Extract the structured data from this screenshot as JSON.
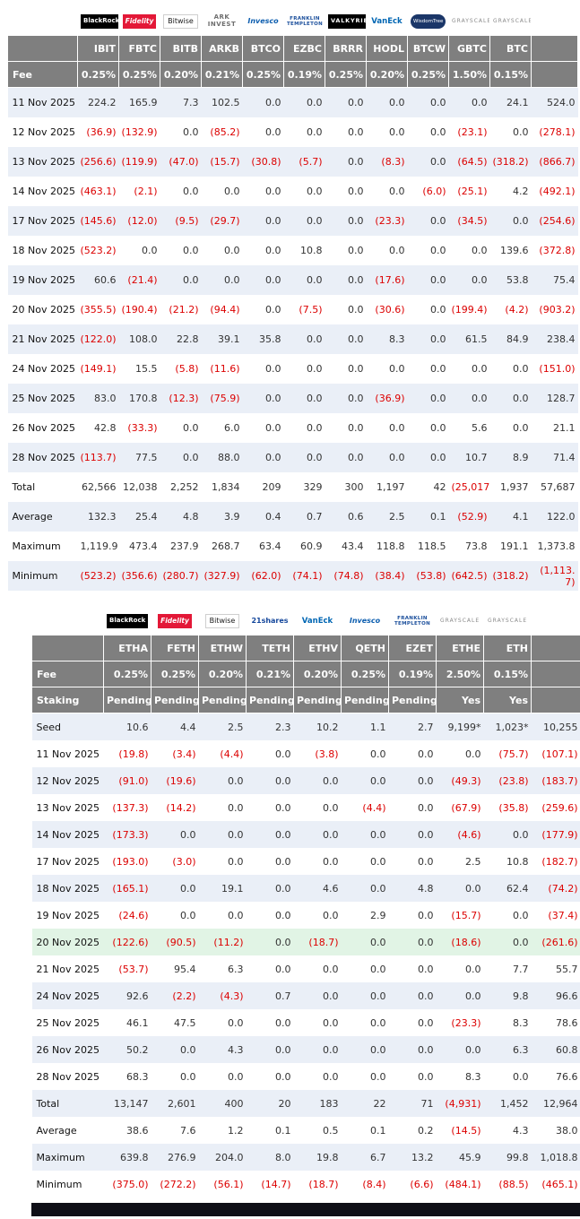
{
  "colors": {
    "header_bg": "#7F7F7F",
    "header_text": "#FFFFFF",
    "row_alt": "#EAEFF7",
    "row_white": "#FFFFFF",
    "row_green": "#E1F4E5",
    "negative": "#DC0000",
    "positive": "#333333",
    "label_text": "#111111",
    "footer_bar": "#0F0F17"
  },
  "chart_data": [
    {
      "id": "btc",
      "type": "table",
      "total_label": "Total",
      "fee_label": "Fee",
      "providers": [
        {
          "brand": "blackrock",
          "text": "BlackRock"
        },
        {
          "brand": "fidelity",
          "text": "Fidelity"
        },
        {
          "brand": "bitwise",
          "text": "Bitwise"
        },
        {
          "brand": "ark",
          "text": "ARK INVEST"
        },
        {
          "brand": "invesco",
          "text": "Invesco"
        },
        {
          "brand": "franklin",
          "text": "FRANKLIN TEMPLETON"
        },
        {
          "brand": "valkyrie",
          "text": "VALKYRIE"
        },
        {
          "brand": "vaneck",
          "text": "VanEck"
        },
        {
          "brand": "wisdomtree",
          "text": "WisdomTree"
        },
        {
          "brand": "grayscale",
          "text": "GRAYSCALE"
        },
        {
          "brand": "grayscale",
          "text": "GRAYSCALE"
        }
      ],
      "tickers": [
        "IBIT",
        "FBTC",
        "BITB",
        "ARKB",
        "BTCO",
        "EZBC",
        "BRRR",
        "HODL",
        "BTCW",
        "GBTC",
        "BTC"
      ],
      "fees": [
        "0.25%",
        "0.25%",
        "0.20%",
        "0.21%",
        "0.25%",
        "0.19%",
        "0.25%",
        "0.20%",
        "0.25%",
        "1.50%",
        "0.15%"
      ],
      "rows": [
        {
          "label": "11 Nov 2025",
          "values": [
            "224.2",
            "165.9",
            "7.3",
            "102.5",
            "0.0",
            "0.0",
            "0.0",
            "0.0",
            "0.0",
            "0.0",
            "24.1"
          ],
          "total": "524.0"
        },
        {
          "label": "12 Nov 2025",
          "values": [
            "(36.9)",
            "(132.9)",
            "0.0",
            "(85.2)",
            "0.0",
            "0.0",
            "0.0",
            "0.0",
            "0.0",
            "(23.1)",
            "0.0"
          ],
          "total": "(278.1)"
        },
        {
          "label": "13 Nov 2025",
          "values": [
            "(256.6)",
            "(119.9)",
            "(47.0)",
            "(15.7)",
            "(30.8)",
            "(5.7)",
            "0.0",
            "(8.3)",
            "0.0",
            "(64.5)",
            "(318.2)"
          ],
          "total": "(866.7)"
        },
        {
          "label": "14 Nov 2025",
          "values": [
            "(463.1)",
            "(2.1)",
            "0.0",
            "0.0",
            "0.0",
            "0.0",
            "0.0",
            "0.0",
            "(6.0)",
            "(25.1)",
            "4.2"
          ],
          "total": "(492.1)"
        },
        {
          "label": "17 Nov 2025",
          "values": [
            "(145.6)",
            "(12.0)",
            "(9.5)",
            "(29.7)",
            "0.0",
            "0.0",
            "0.0",
            "(23.3)",
            "0.0",
            "(34.5)",
            "0.0"
          ],
          "total": "(254.6)"
        },
        {
          "label": "18 Nov 2025",
          "values": [
            "(523.2)",
            "0.0",
            "0.0",
            "0.0",
            "0.0",
            "10.8",
            "0.0",
            "0.0",
            "0.0",
            "0.0",
            "139.6"
          ],
          "total": "(372.8)"
        },
        {
          "label": "19 Nov 2025",
          "values": [
            "60.6",
            "(21.4)",
            "0.0",
            "0.0",
            "0.0",
            "0.0",
            "0.0",
            "(17.6)",
            "0.0",
            "0.0",
            "53.8"
          ],
          "total": "75.4"
        },
        {
          "label": "20 Nov 2025",
          "values": [
            "(355.5)",
            "(190.4)",
            "(21.2)",
            "(94.4)",
            "0.0",
            "(7.5)",
            "0.0",
            "(30.6)",
            "0.0",
            "(199.4)",
            "(4.2)"
          ],
          "total": "(903.2)"
        },
        {
          "label": "21 Nov 2025",
          "values": [
            "(122.0)",
            "108.0",
            "22.8",
            "39.1",
            "35.8",
            "0.0",
            "0.0",
            "8.3",
            "0.0",
            "61.5",
            "84.9"
          ],
          "total": "238.4"
        },
        {
          "label": "24 Nov 2025",
          "values": [
            "(149.1)",
            "15.5",
            "(5.8)",
            "(11.6)",
            "0.0",
            "0.0",
            "0.0",
            "0.0",
            "0.0",
            "0.0",
            "0.0"
          ],
          "total": "(151.0)"
        },
        {
          "label": "25 Nov 2025",
          "values": [
            "83.0",
            "170.8",
            "(12.3)",
            "(75.9)",
            "0.0",
            "0.0",
            "0.0",
            "(36.9)",
            "0.0",
            "0.0",
            "0.0"
          ],
          "total": "128.7"
        },
        {
          "label": "26 Nov 2025",
          "values": [
            "42.8",
            "(33.3)",
            "0.0",
            "6.0",
            "0.0",
            "0.0",
            "0.0",
            "0.0",
            "0.0",
            "5.6",
            "0.0"
          ],
          "total": "21.1"
        },
        {
          "label": "28 Nov 2025",
          "values": [
            "(113.7)",
            "77.5",
            "0.0",
            "88.0",
            "0.0",
            "0.0",
            "0.0",
            "0.0",
            "0.0",
            "10.7",
            "8.9"
          ],
          "total": "71.4"
        }
      ],
      "summary": [
        {
          "label": "Total",
          "values": [
            "62,566",
            "12,038",
            "2,252",
            "1,834",
            "209",
            "329",
            "300",
            "1,197",
            "42",
            "(25,017)",
            "1,937"
          ],
          "total": "57,687"
        },
        {
          "label": "Average",
          "values": [
            "132.3",
            "25.4",
            "4.8",
            "3.9",
            "0.4",
            "0.7",
            "0.6",
            "2.5",
            "0.1",
            "(52.9)",
            "4.1"
          ],
          "total": "122.0"
        },
        {
          "label": "Maximum",
          "values": [
            "1,119.9",
            "473.4",
            "237.9",
            "268.7",
            "63.4",
            "60.9",
            "43.4",
            "118.8",
            "118.5",
            "73.8",
            "191.1"
          ],
          "total": "1,373.8"
        },
        {
          "label": "Minimum",
          "values": [
            "(523.2)",
            "(356.6)",
            "(280.7)",
            "(327.9)",
            "(62.0)",
            "(74.1)",
            "(74.8)",
            "(38.4)",
            "(53.8)",
            "(642.5)",
            "(318.2)"
          ],
          "total": "(1,113.7)"
        }
      ]
    },
    {
      "id": "eth",
      "type": "table",
      "total_label": "Total",
      "fee_label": "Fee",
      "staking_label": "Staking",
      "providers": [
        {
          "brand": "blackrock",
          "text": "BlackRock"
        },
        {
          "brand": "fidelity",
          "text": "Fidelity"
        },
        {
          "brand": "bitwise",
          "text": "Bitwise"
        },
        {
          "brand": "21shares",
          "text": "21shares"
        },
        {
          "brand": "vaneck",
          "text": "VanEck"
        },
        {
          "brand": "invesco",
          "text": "Invesco"
        },
        {
          "brand": "franklin",
          "text": "FRANKLIN TEMPLETON"
        },
        {
          "brand": "grayscale",
          "text": "GRAYSCALE"
        },
        {
          "brand": "grayscale",
          "text": "GRAYSCALE"
        }
      ],
      "tickers": [
        "ETHA",
        "FETH",
        "ETHW",
        "TETH",
        "ETHV",
        "QETH",
        "EZET",
        "ETHE",
        "ETH"
      ],
      "fees": [
        "0.25%",
        "0.25%",
        "0.20%",
        "0.21%",
        "0.20%",
        "0.25%",
        "0.19%",
        "2.50%",
        "0.15%"
      ],
      "staking": [
        "Pending",
        "Pending",
        "Pending",
        "Pending",
        "Pending",
        "Pending",
        "Pending",
        "Yes",
        "Yes"
      ],
      "rows": [
        {
          "label": "Seed",
          "values": [
            "10.6",
            "4.4",
            "2.5",
            "2.3",
            "10.2",
            "1.1",
            "2.7",
            "9,199*",
            "1,023*"
          ],
          "total": "10,255"
        },
        {
          "label": "11 Nov 2025",
          "values": [
            "(19.8)",
            "(3.4)",
            "(4.4)",
            "0.0",
            "(3.8)",
            "0.0",
            "0.0",
            "0.0",
            "(75.7)"
          ],
          "total": "(107.1)"
        },
        {
          "label": "12 Nov 2025",
          "values": [
            "(91.0)",
            "(19.6)",
            "0.0",
            "0.0",
            "0.0",
            "0.0",
            "0.0",
            "(49.3)",
            "(23.8)"
          ],
          "total": "(183.7)"
        },
        {
          "label": "13 Nov 2025",
          "values": [
            "(137.3)",
            "(14.2)",
            "0.0",
            "0.0",
            "0.0",
            "(4.4)",
            "0.0",
            "(67.9)",
            "(35.8)"
          ],
          "total": "(259.6)"
        },
        {
          "label": "14 Nov 2025",
          "values": [
            "(173.3)",
            "0.0",
            "0.0",
            "0.0",
            "0.0",
            "0.0",
            "0.0",
            "(4.6)",
            "0.0"
          ],
          "total": "(177.9)"
        },
        {
          "label": "17 Nov 2025",
          "values": [
            "(193.0)",
            "(3.0)",
            "0.0",
            "0.0",
            "0.0",
            "0.0",
            "0.0",
            "2.5",
            "10.8"
          ],
          "total": "(182.7)"
        },
        {
          "label": "18 Nov 2025",
          "values": [
            "(165.1)",
            "0.0",
            "19.1",
            "0.0",
            "4.6",
            "0.0",
            "4.8",
            "0.0",
            "62.4"
          ],
          "total": "(74.2)"
        },
        {
          "label": "19 Nov 2025",
          "values": [
            "(24.6)",
            "0.0",
            "0.0",
            "0.0",
            "0.0",
            "2.9",
            "0.0",
            "(15.7)",
            "0.0"
          ],
          "total": "(37.4)"
        },
        {
          "label": "20 Nov 2025",
          "highlight": true,
          "values": [
            "(122.6)",
            "(90.5)",
            "(11.2)",
            "0.0",
            "(18.7)",
            "0.0",
            "0.0",
            "(18.6)",
            "0.0"
          ],
          "total": "(261.6)"
        },
        {
          "label": "21 Nov 2025",
          "values": [
            "(53.7)",
            "95.4",
            "6.3",
            "0.0",
            "0.0",
            "0.0",
            "0.0",
            "0.0",
            "7.7"
          ],
          "total": "55.7"
        },
        {
          "label": "24 Nov 2025",
          "values": [
            "92.6",
            "(2.2)",
            "(4.3)",
            "0.7",
            "0.0",
            "0.0",
            "0.0",
            "0.0",
            "9.8"
          ],
          "total": "96.6"
        },
        {
          "label": "25 Nov 2025",
          "values": [
            "46.1",
            "47.5",
            "0.0",
            "0.0",
            "0.0",
            "0.0",
            "0.0",
            "(23.3)",
            "8.3"
          ],
          "total": "78.6"
        },
        {
          "label": "26 Nov 2025",
          "values": [
            "50.2",
            "0.0",
            "4.3",
            "0.0",
            "0.0",
            "0.0",
            "0.0",
            "0.0",
            "6.3"
          ],
          "total": "60.8"
        },
        {
          "label": "28 Nov 2025",
          "values": [
            "68.3",
            "0.0",
            "0.0",
            "0.0",
            "0.0",
            "0.0",
            "0.0",
            "8.3",
            "0.0"
          ],
          "total": "76.6"
        }
      ],
      "summary": [
        {
          "label": "Total",
          "values": [
            "13,147",
            "2,601",
            "400",
            "20",
            "183",
            "22",
            "71",
            "(4,931)",
            "1,452"
          ],
          "total": "12,964"
        },
        {
          "label": "Average",
          "values": [
            "38.6",
            "7.6",
            "1.2",
            "0.1",
            "0.5",
            "0.1",
            "0.2",
            "(14.5)",
            "4.3"
          ],
          "total": "38.0"
        },
        {
          "label": "Maximum",
          "values": [
            "639.8",
            "276.9",
            "204.0",
            "8.0",
            "19.8",
            "6.7",
            "13.2",
            "45.9",
            "99.8"
          ],
          "total": "1,018.8"
        },
        {
          "label": "Minimum",
          "values": [
            "(375.0)",
            "(272.2)",
            "(56.1)",
            "(14.7)",
            "(18.7)",
            "(8.4)",
            "(6.6)",
            "(484.1)",
            "(88.5)"
          ],
          "total": "(465.1)"
        }
      ]
    }
  ]
}
